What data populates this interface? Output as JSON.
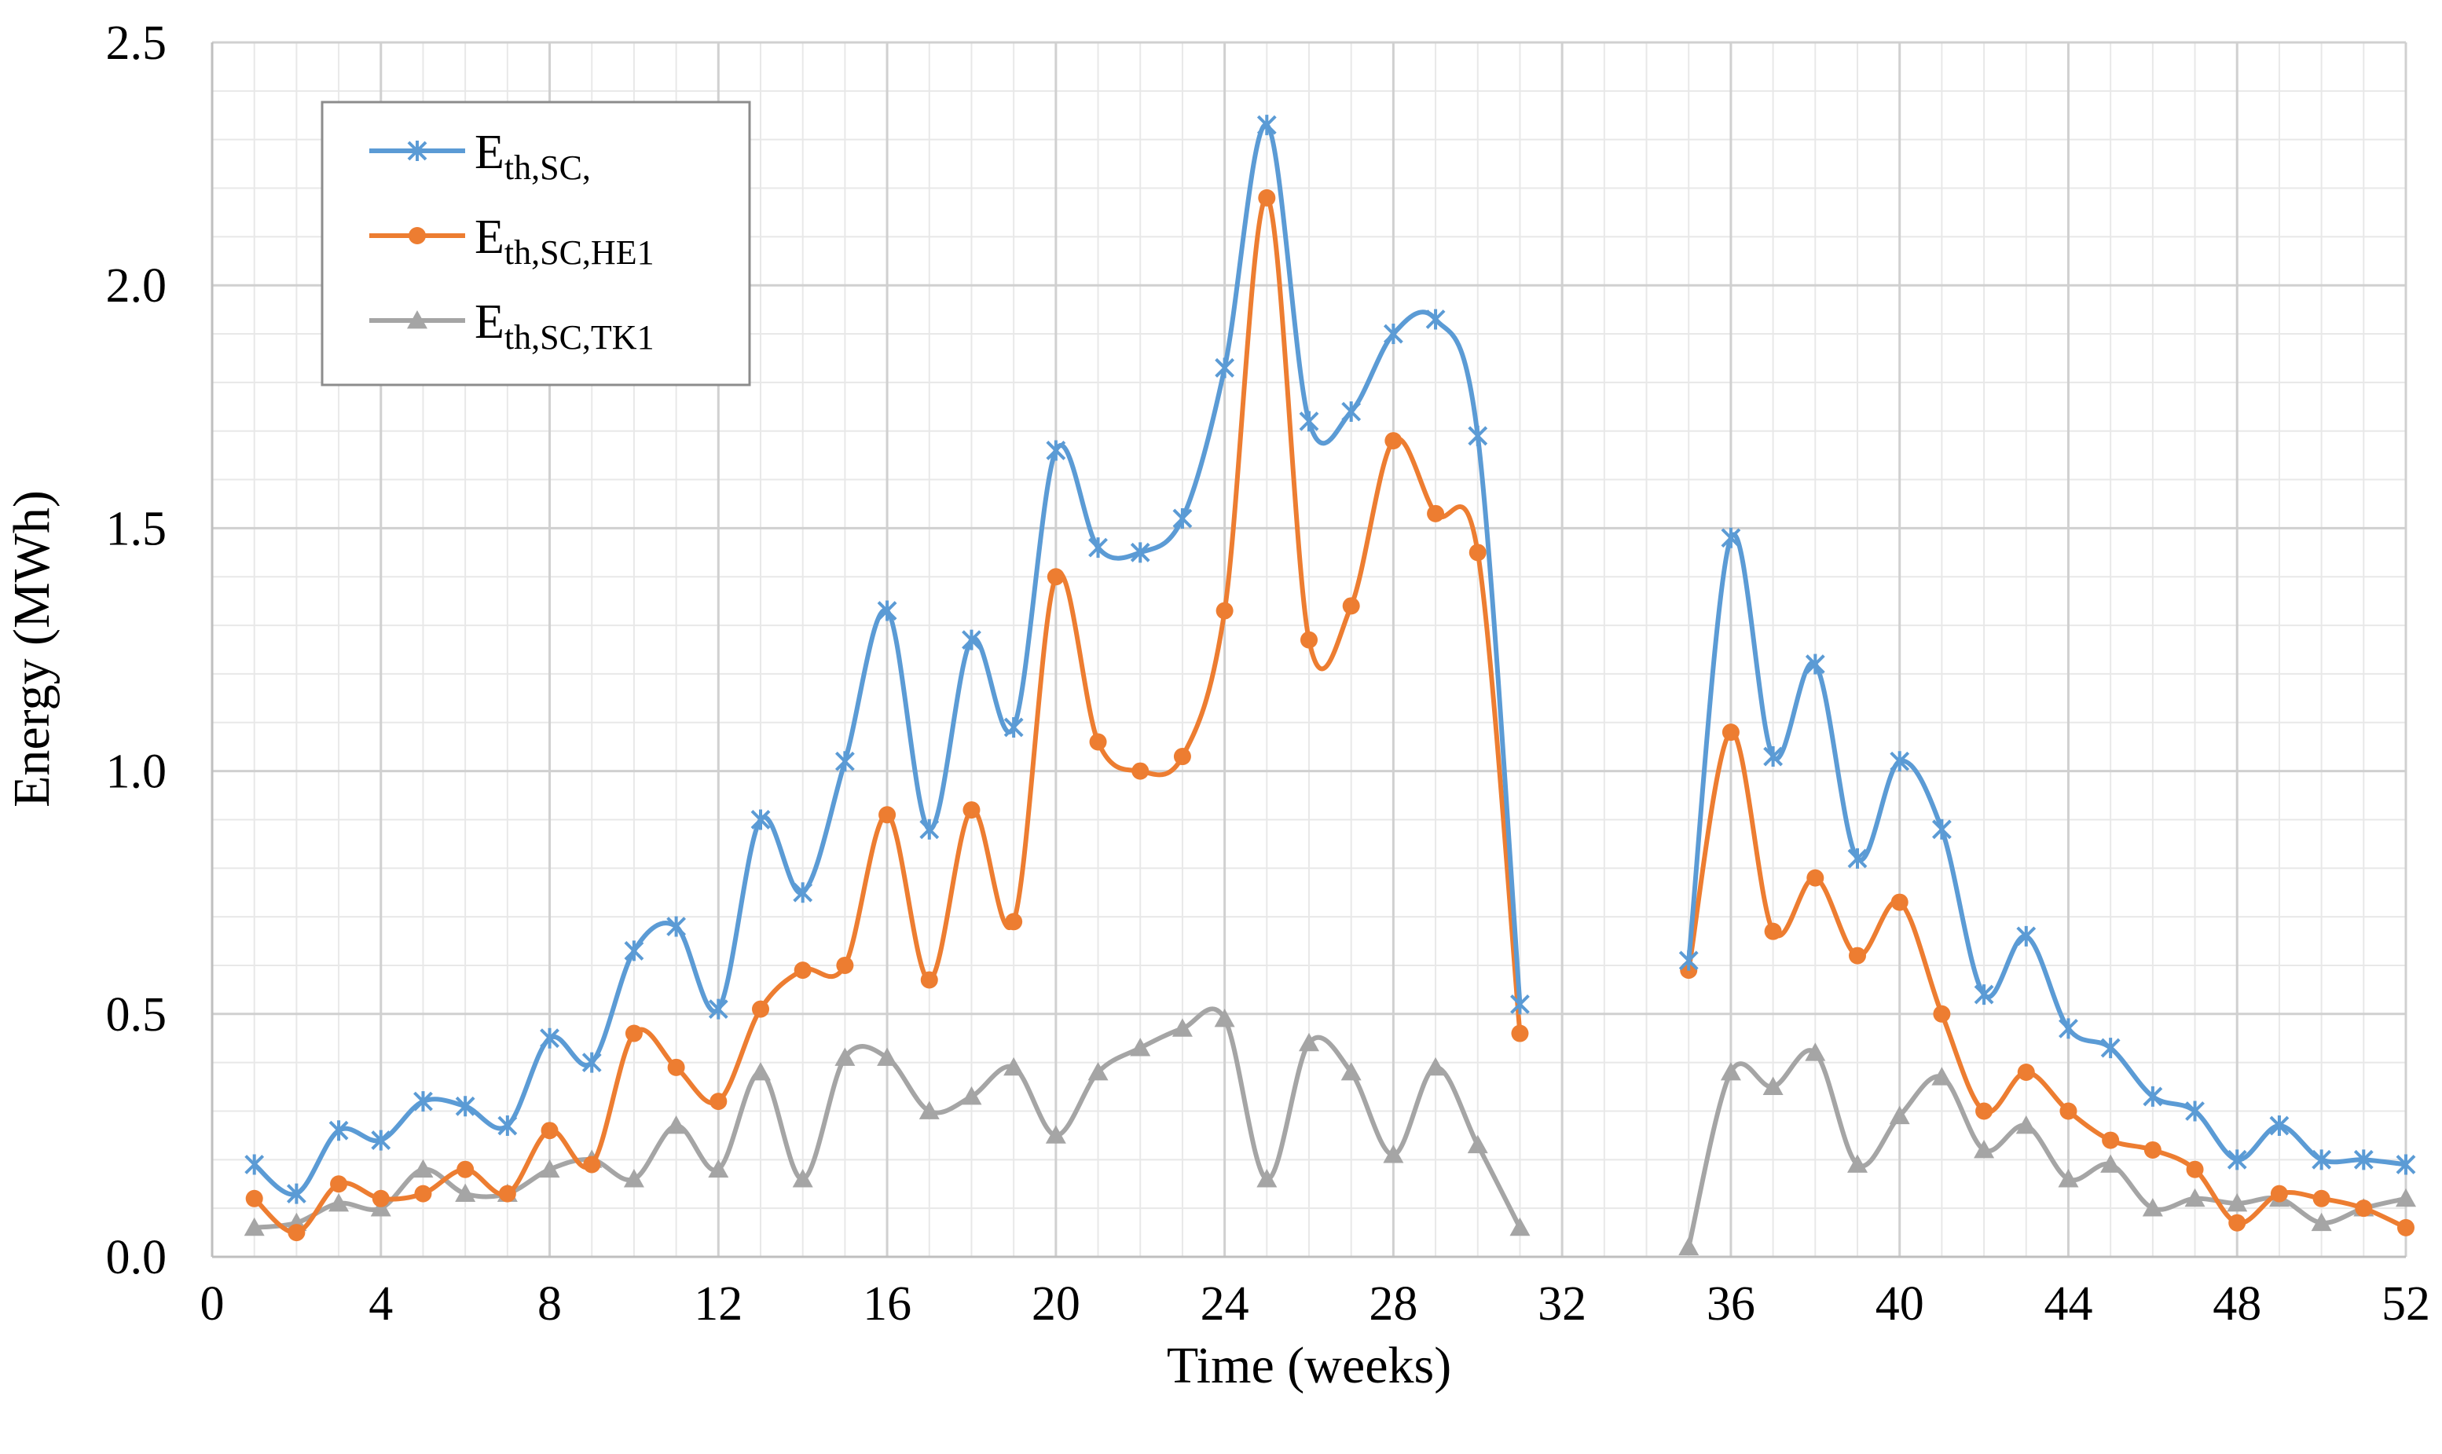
{
  "chart_data": {
    "type": "line",
    "title": "",
    "xlabel": "Time (weeks)",
    "ylabel": "Energy (MWh)",
    "xlim": [
      0,
      52
    ],
    "ylim": [
      0,
      2.5
    ],
    "x_ticks": [
      0,
      4,
      8,
      12,
      16,
      20,
      24,
      28,
      32,
      36,
      40,
      44,
      48,
      52
    ],
    "x_tick_labels": [
      "0",
      "4",
      "8",
      "12",
      "16",
      "20",
      "24",
      "28",
      "32",
      "36",
      "40",
      "44",
      "48",
      "52"
    ],
    "y_ticks": [
      0,
      0.5,
      1.0,
      1.5,
      2.0,
      2.5
    ],
    "y_tick_labels": [
      "0.0",
      "0.5",
      "1.0",
      "1.5",
      "2.0",
      "2.5"
    ],
    "grid": true,
    "legend_position": "top-left",
    "x": [
      1,
      2,
      3,
      4,
      5,
      6,
      7,
      8,
      9,
      10,
      11,
      12,
      13,
      14,
      15,
      16,
      17,
      18,
      19,
      20,
      21,
      22,
      23,
      24,
      25,
      26,
      27,
      28,
      29,
      30,
      31,
      32,
      33,
      34,
      35,
      36,
      37,
      38,
      39,
      40,
      41,
      42,
      43,
      44,
      45,
      46,
      47,
      48,
      49,
      50,
      51,
      52
    ],
    "series": [
      {
        "name": "E_th,SC,",
        "label_main": "E",
        "label_sub": "th,SC,",
        "color": "#5B9BD5",
        "marker": "star",
        "values": [
          0.19,
          0.13,
          0.26,
          0.24,
          0.32,
          0.31,
          0.27,
          0.45,
          0.4,
          0.63,
          0.68,
          0.51,
          0.9,
          0.75,
          1.02,
          1.33,
          0.88,
          1.27,
          1.09,
          1.66,
          1.46,
          1.45,
          1.52,
          1.83,
          2.33,
          1.72,
          1.74,
          1.9,
          1.93,
          1.69,
          0.52,
          null,
          null,
          null,
          0.61,
          1.48,
          1.03,
          1.22,
          0.82,
          1.02,
          0.88,
          0.54,
          0.66,
          0.47,
          0.43,
          0.33,
          0.3,
          0.2,
          0.27,
          0.2,
          0.2,
          0.19
        ]
      },
      {
        "name": "E_th,SC,HE1",
        "label_main": "E",
        "label_sub": "th,SC,HE1",
        "color": "#ED7D31",
        "marker": "circle",
        "values": [
          0.12,
          0.05,
          0.15,
          0.12,
          0.13,
          0.18,
          0.13,
          0.26,
          0.19,
          0.46,
          0.39,
          0.32,
          0.51,
          0.59,
          0.6,
          0.91,
          0.57,
          0.92,
          0.69,
          1.4,
          1.06,
          1.0,
          1.03,
          1.33,
          2.18,
          1.27,
          1.34,
          1.68,
          1.53,
          1.45,
          0.46,
          null,
          null,
          null,
          0.59,
          1.08,
          0.67,
          0.78,
          0.62,
          0.73,
          0.5,
          0.3,
          0.38,
          0.3,
          0.24,
          0.22,
          0.18,
          0.07,
          0.13,
          0.12,
          0.1,
          0.06
        ]
      },
      {
        "name": "E_th,SC,TK1",
        "label_main": "E",
        "label_sub": "th,SC,TK1",
        "color": "#A5A5A5",
        "marker": "triangle",
        "values": [
          0.06,
          0.07,
          0.11,
          0.1,
          0.18,
          0.13,
          0.13,
          0.18,
          0.2,
          0.16,
          0.27,
          0.18,
          0.38,
          0.16,
          0.41,
          0.41,
          0.3,
          0.33,
          0.39,
          0.25,
          0.38,
          0.43,
          0.47,
          0.49,
          0.16,
          0.44,
          0.38,
          0.21,
          0.39,
          0.23,
          0.06,
          null,
          null,
          null,
          0.02,
          0.38,
          0.35,
          0.42,
          0.19,
          0.29,
          0.37,
          0.22,
          0.27,
          0.16,
          0.19,
          0.1,
          0.12,
          0.11,
          0.12,
          0.07,
          0.1,
          0.12
        ]
      }
    ]
  }
}
